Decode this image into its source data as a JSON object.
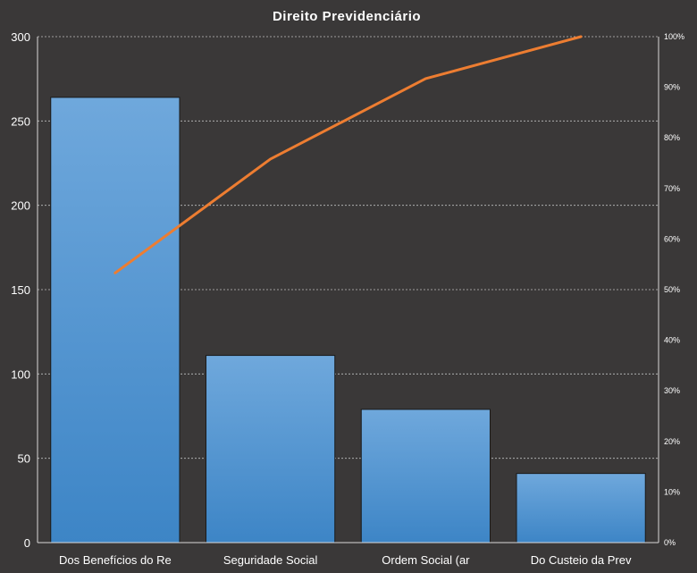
{
  "chart_data": {
    "type": "bar",
    "title": "Direito  Previdenciário",
    "categories": [
      "Dos Benefícios do Re",
      "Seguridade Social",
      "Ordem Social (ar",
      "Do Custeio da Prev"
    ],
    "series": [
      {
        "type": "bar",
        "values": [
          264,
          111,
          79,
          41
        ]
      },
      {
        "type": "line",
        "axis": "right",
        "values": [
          53.3,
          75.8,
          91.7,
          100
        ]
      }
    ],
    "ylim": [
      0,
      300
    ],
    "yticks": [
      "0",
      "50",
      "100",
      "150",
      "200",
      "250",
      "300"
    ],
    "y2lim": [
      0,
      100
    ],
    "y2ticks": [
      "0%",
      "10%",
      "20%",
      "30%",
      "40%",
      "50%",
      "60%",
      "70%",
      "80%",
      "90%",
      "100%"
    ],
    "grid": true,
    "colors": {
      "bar_top": "#6fa8dc",
      "bar_bottom": "#3d85c6",
      "line": "#ed7d31",
      "background": "#3a3838"
    }
  }
}
